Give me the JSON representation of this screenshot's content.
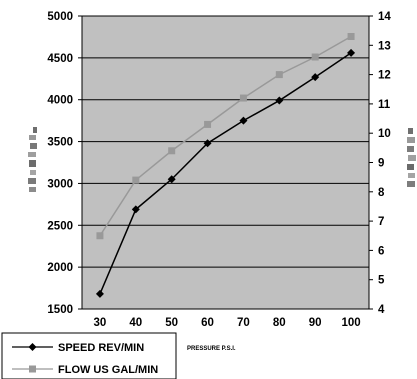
{
  "chart_data": {
    "type": "line",
    "title": "",
    "xlabel": "PRESSURE P.S.I.",
    "ylabel": "",
    "ylabel_right": "",
    "x": [
      30,
      40,
      50,
      60,
      70,
      80,
      90,
      100
    ],
    "xlim": [
      25,
      105
    ],
    "ylim": [
      1500,
      5000
    ],
    "ylim_right": [
      4,
      14
    ],
    "y_ticks": [
      1500,
      2000,
      2500,
      3000,
      3500,
      4000,
      4500,
      5000
    ],
    "y_right_ticks": [
      4,
      5,
      6,
      7,
      8,
      9,
      10,
      11,
      12,
      13,
      14
    ],
    "grid": "horizontal",
    "legend_placement": "bottom-left",
    "series": [
      {
        "name": "SPEED REV/MIN",
        "axis": "left",
        "color": "#000000",
        "marker": "diamond",
        "values": [
          1680,
          2690,
          3050,
          3480,
          3750,
          3990,
          4270,
          4560
        ]
      },
      {
        "name": "FLOW US GAL/MIN",
        "axis": "right",
        "color": "#999999",
        "marker": "square",
        "values": [
          6.5,
          8.4,
          9.4,
          10.3,
          11.2,
          12.0,
          12.6,
          13.3
        ]
      }
    ]
  },
  "colors": {
    "plot_background": "#c0c0c0",
    "grid": "#000000"
  }
}
